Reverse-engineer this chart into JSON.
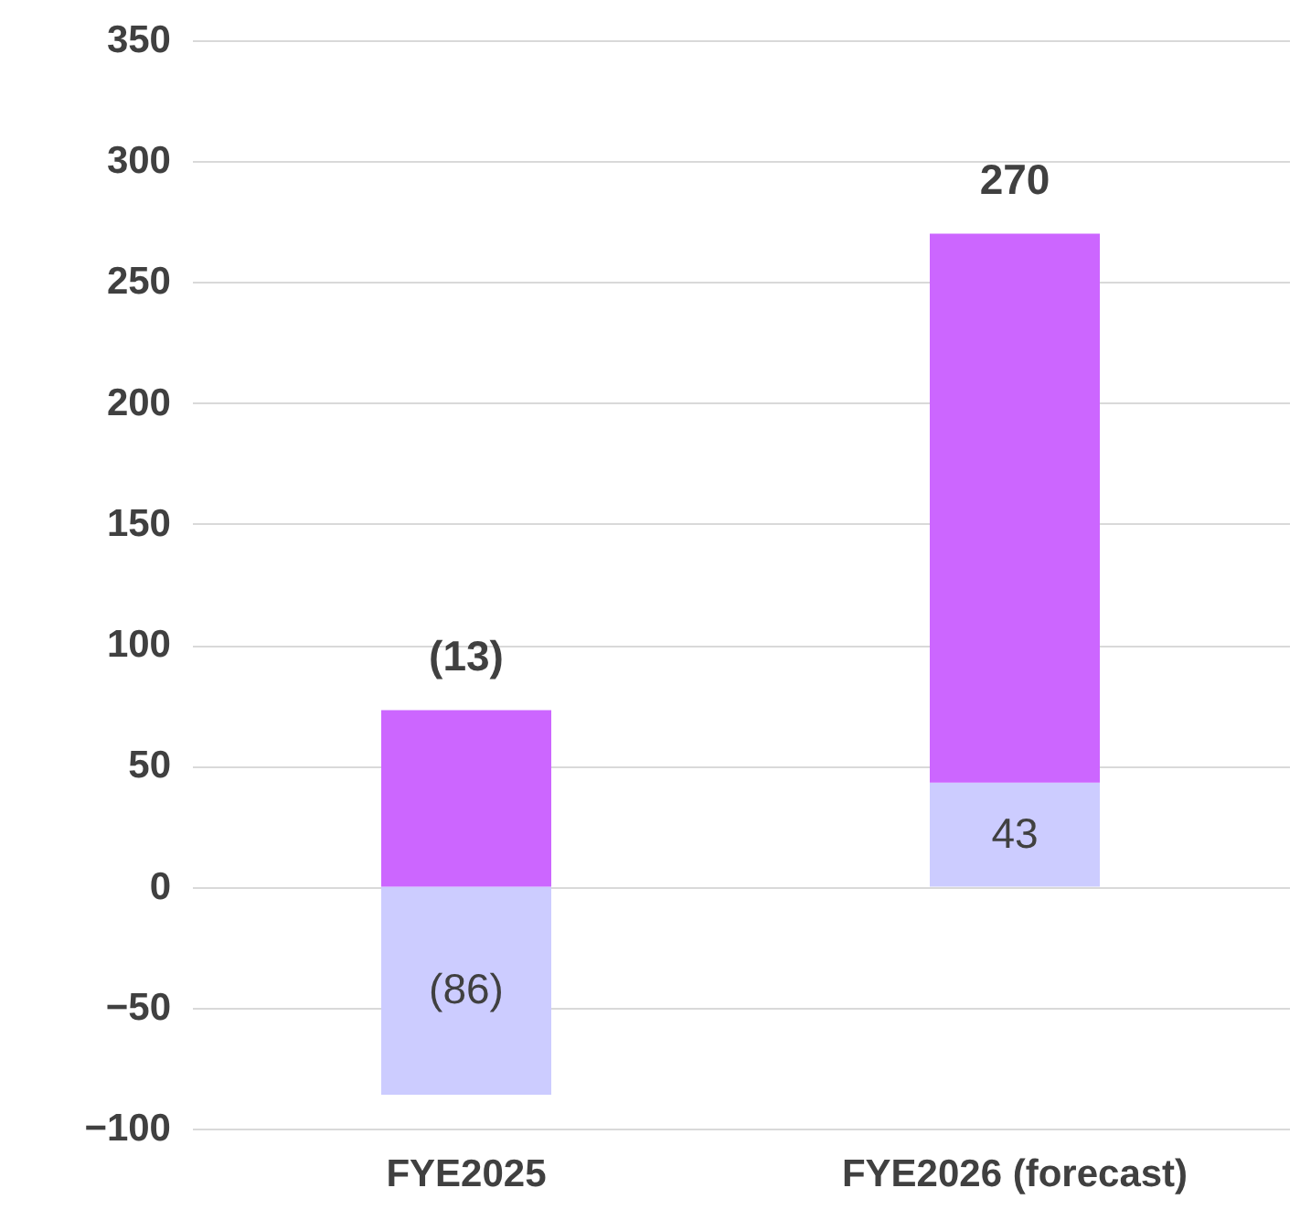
{
  "chart_data": {
    "type": "bar",
    "stacked": true,
    "categories": [
      "FYE2025",
      "FYE2026 (forecast)"
    ],
    "series": [
      {
        "color": "#ccccff",
        "values": [
          -86,
          43
        ],
        "value_labels": [
          "(86)",
          "43"
        ]
      },
      {
        "color": "#cc66ff",
        "values": [
          73,
          227
        ]
      }
    ],
    "totals": [
      "(13)",
      "270"
    ],
    "ylim": [
      -100,
      350
    ],
    "yticks": [
      -100,
      -50,
      0,
      50,
      100,
      150,
      200,
      250,
      300,
      350
    ],
    "grid": "y",
    "legend": false
  }
}
